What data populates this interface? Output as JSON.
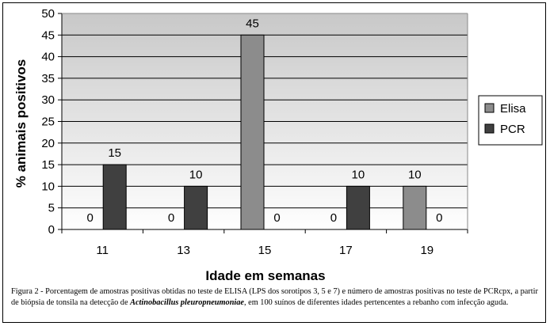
{
  "chart_data": {
    "type": "bar",
    "categories": [
      "11",
      "13",
      "15",
      "17",
      "19"
    ],
    "series": [
      {
        "name": "Elisa",
        "values": [
          0,
          0,
          45,
          0,
          10
        ],
        "color": "#8c8c8c"
      },
      {
        "name": "PCR",
        "values": [
          15,
          10,
          0,
          10,
          0
        ],
        "color": "#404040"
      }
    ],
    "xlabel": "Idade em semanas",
    "ylabel": "% animais positivos",
    "ylim": [
      0,
      50
    ],
    "yticks": [
      0,
      5,
      10,
      15,
      20,
      25,
      30,
      35,
      40,
      45,
      50
    ],
    "grid": true,
    "legend": "right",
    "plot_background": "gradient #ffffff to #c8c8c8"
  },
  "caption": {
    "text": "Figura 2 - Porcentagem de amostras positivas obtidas no teste de ELISA (LPS dos sorotipos 3, 5 e 7) e número de amostras positivas no teste de PCRcpx, a partir de biópsia de tonsila na detecção de ",
    "italic": "Actinobacillus pleuropneumoniae",
    "text_end": ", em 100 suínos de diferentes idades pertencentes a rebanho com infecção aguda."
  }
}
